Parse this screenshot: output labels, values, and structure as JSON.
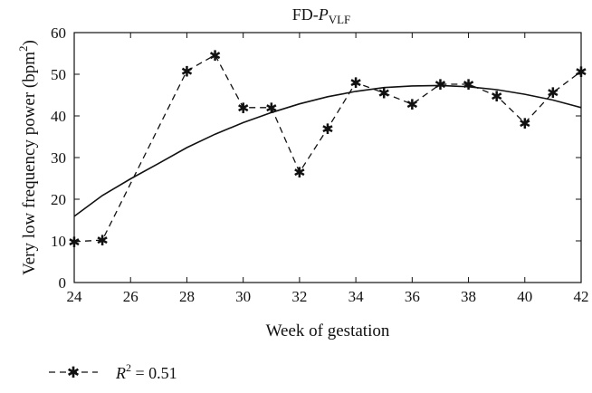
{
  "chart_data": {
    "type": "line",
    "title": {
      "prefix": "FD-",
      "main": "P",
      "subscript": "VLF"
    },
    "xlabel": "Week of gestation",
    "ylabel": {
      "text": "Very low frequency power (bpm",
      "superscript": "2",
      "suffix": ")"
    },
    "xlim": [
      24,
      42
    ],
    "ylim": [
      0,
      60
    ],
    "xticks": [
      "24",
      "26",
      "28",
      "30",
      "32",
      "34",
      "36",
      "38",
      "40",
      "42"
    ],
    "yticks": [
      "0",
      "10",
      "20",
      "30",
      "40",
      "50",
      "60"
    ],
    "grid": false,
    "legend_position": "bottom-left",
    "series": [
      {
        "style": "dashed-star",
        "x": [
          24,
          25,
          28,
          29,
          30,
          31,
          32,
          33,
          34,
          35,
          36,
          37,
          38,
          39,
          40,
          41,
          42
        ],
        "y": [
          9.8,
          10.2,
          50.8,
          54.6,
          42.0,
          42.0,
          26.5,
          37.0,
          48.0,
          45.5,
          42.8,
          47.6,
          47.6,
          44.8,
          38.3,
          45.6,
          50.7
        ]
      },
      {
        "style": "solid-fit",
        "x": [
          24,
          25,
          26,
          27,
          28,
          29,
          30,
          31,
          32,
          33,
          34,
          35,
          36,
          37,
          38,
          39,
          40,
          41,
          42
        ],
        "y": [
          15.9,
          20.9,
          24.9,
          28.6,
          32.4,
          35.6,
          38.4,
          40.8,
          42.9,
          44.6,
          45.9,
          46.8,
          47.2,
          47.3,
          47.0,
          46.3,
          45.2,
          43.8,
          42.0
        ]
      }
    ],
    "legend": {
      "label_var": "R",
      "label_sup": "2",
      "label_rest": " = 0.51"
    }
  }
}
